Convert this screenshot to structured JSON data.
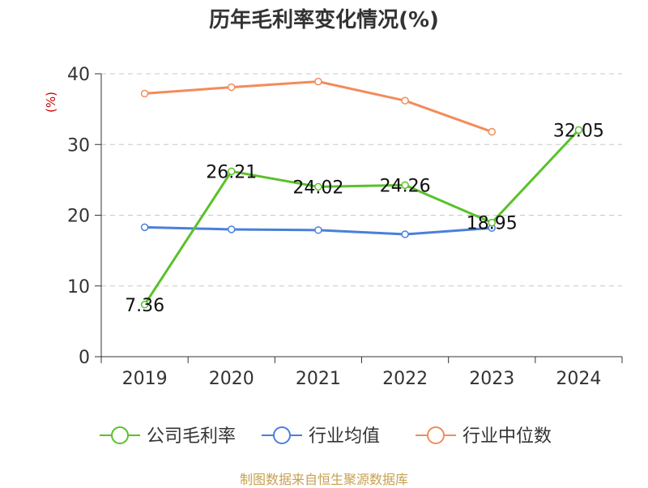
{
  "title": "历年毛利率变化情况(%)",
  "source": "制图数据来自恒生聚源数据库",
  "chart_data": {
    "type": "line",
    "title": "历年毛利率变化情况(%)",
    "ylabel": "(%)",
    "xlabel": "",
    "categories": [
      "2019",
      "2020",
      "2021",
      "2022",
      "2023",
      "2024"
    ],
    "ylim": [
      0,
      40
    ],
    "yticks": [
      0,
      10,
      20,
      30,
      40
    ],
    "grid": true,
    "legend_position": "bottom",
    "series": [
      {
        "name": "公司毛利率",
        "color": "#5ac12a",
        "values": [
          7.36,
          26.21,
          24.02,
          24.26,
          18.95,
          32.05
        ],
        "labels": [
          "7.36",
          "26.21",
          "24.02",
          "24.26",
          "18.95",
          "32.05"
        ]
      },
      {
        "name": "行业均值",
        "color": "#4a7fdc",
        "values": [
          18.3,
          18.0,
          17.9,
          17.3,
          18.2,
          null
        ]
      },
      {
        "name": "行业中位数",
        "color": "#f28c5a",
        "values": [
          37.2,
          38.1,
          38.9,
          36.2,
          31.8,
          null
        ]
      }
    ]
  }
}
